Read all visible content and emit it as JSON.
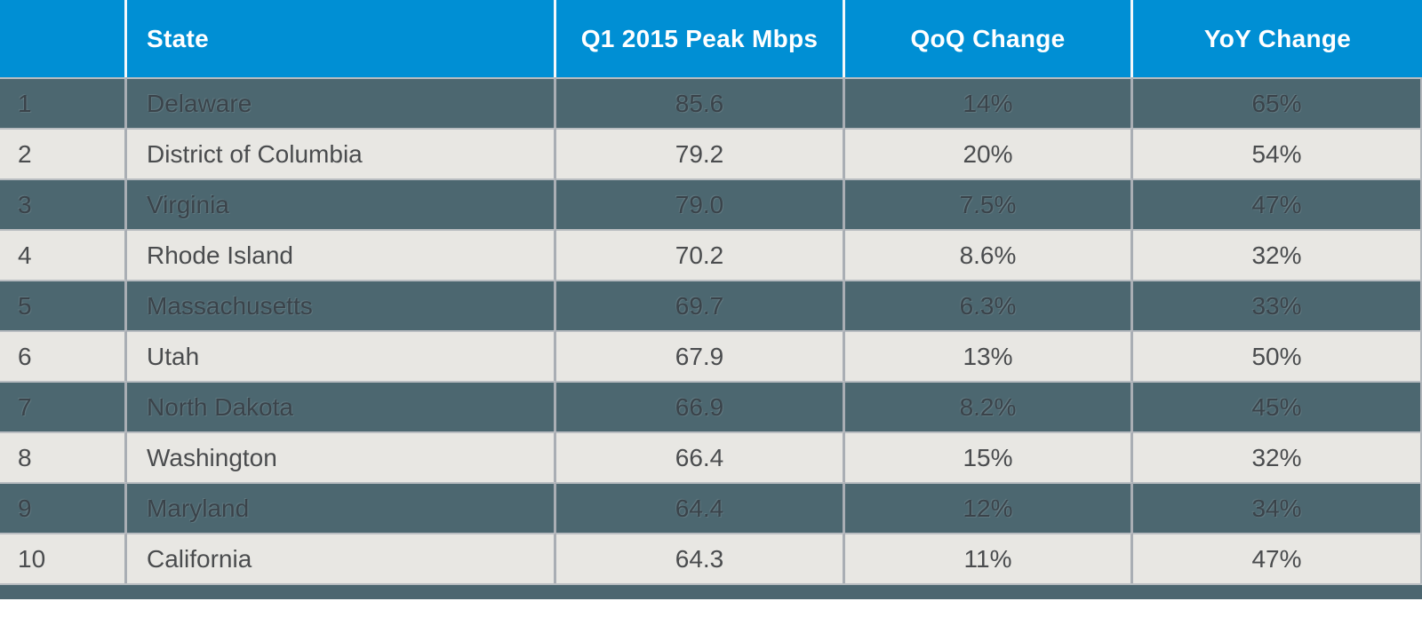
{
  "table": {
    "columns": [
      {
        "key": "rank",
        "label": ""
      },
      {
        "key": "state",
        "label": "State"
      },
      {
        "key": "peak",
        "label": "Q1 2015 Peak Mbps"
      },
      {
        "key": "qoq",
        "label": "QoQ Change"
      },
      {
        "key": "yoy",
        "label": "YoY Change"
      }
    ],
    "rows": [
      {
        "rank": "1",
        "state": "Delaware",
        "peak": "85.6",
        "qoq": "14%",
        "yoy": "65%",
        "shade": "dark"
      },
      {
        "rank": "2",
        "state": "District of Columbia",
        "peak": "79.2",
        "qoq": "20%",
        "yoy": "54%",
        "shade": "light"
      },
      {
        "rank": "3",
        "state": "Virginia",
        "peak": "79.0",
        "qoq": "7.5%",
        "yoy": "47%",
        "shade": "dark"
      },
      {
        "rank": "4",
        "state": "Rhode Island",
        "peak": "70.2",
        "qoq": "8.6%",
        "yoy": "32%",
        "shade": "light"
      },
      {
        "rank": "5",
        "state": "Massachusetts",
        "peak": "69.7",
        "qoq": "6.3%",
        "yoy": "33%",
        "shade": "dark"
      },
      {
        "rank": "6",
        "state": "Utah",
        "peak": "67.9",
        "qoq": "13%",
        "yoy": "50%",
        "shade": "light"
      },
      {
        "rank": "7",
        "state": "North Dakota",
        "peak": "66.9",
        "qoq": "8.2%",
        "yoy": "45%",
        "shade": "dark"
      },
      {
        "rank": "8",
        "state": "Washington",
        "peak": "66.4",
        "qoq": "15%",
        "yoy": "32%",
        "shade": "light"
      },
      {
        "rank": "9",
        "state": "Maryland",
        "peak": "64.4",
        "qoq": "12%",
        "yoy": "34%",
        "shade": "dark"
      },
      {
        "rank": "10",
        "state": "California",
        "peak": "64.3",
        "qoq": "11%",
        "yoy": "47%",
        "shade": "light"
      }
    ]
  },
  "colors": {
    "header_bg": "#008fd4",
    "header_text": "#ffffff",
    "dark_row_bg": "#4c6770",
    "dark_row_text": "#3a434a",
    "light_row_bg": "#e8e7e3",
    "light_row_text": "#4a4c4e",
    "separator": "#a9aeb4",
    "footer_bg": "#4c6670"
  },
  "chart_data": {
    "type": "table",
    "title": "Q1 2015 Peak Mbps by State",
    "columns": [
      "Rank",
      "State",
      "Q1 2015 Peak Mbps",
      "QoQ Change",
      "YoY Change"
    ],
    "rows": [
      [
        1,
        "Delaware",
        85.6,
        "14%",
        "65%"
      ],
      [
        2,
        "District of Columbia",
        79.2,
        "20%",
        "54%"
      ],
      [
        3,
        "Virginia",
        79.0,
        "7.5%",
        "47%"
      ],
      [
        4,
        "Rhode Island",
        70.2,
        "8.6%",
        "32%"
      ],
      [
        5,
        "Massachusetts",
        69.7,
        "6.3%",
        "33%"
      ],
      [
        6,
        "Utah",
        67.9,
        "13%",
        "50%"
      ],
      [
        7,
        "North Dakota",
        66.9,
        "8.2%",
        "45%"
      ],
      [
        8,
        "Washington",
        66.4,
        "15%",
        "32%"
      ],
      [
        9,
        "Maryland",
        64.4,
        "12%",
        "34%"
      ],
      [
        10,
        "California",
        64.3,
        "11%",
        "47%"
      ]
    ]
  }
}
